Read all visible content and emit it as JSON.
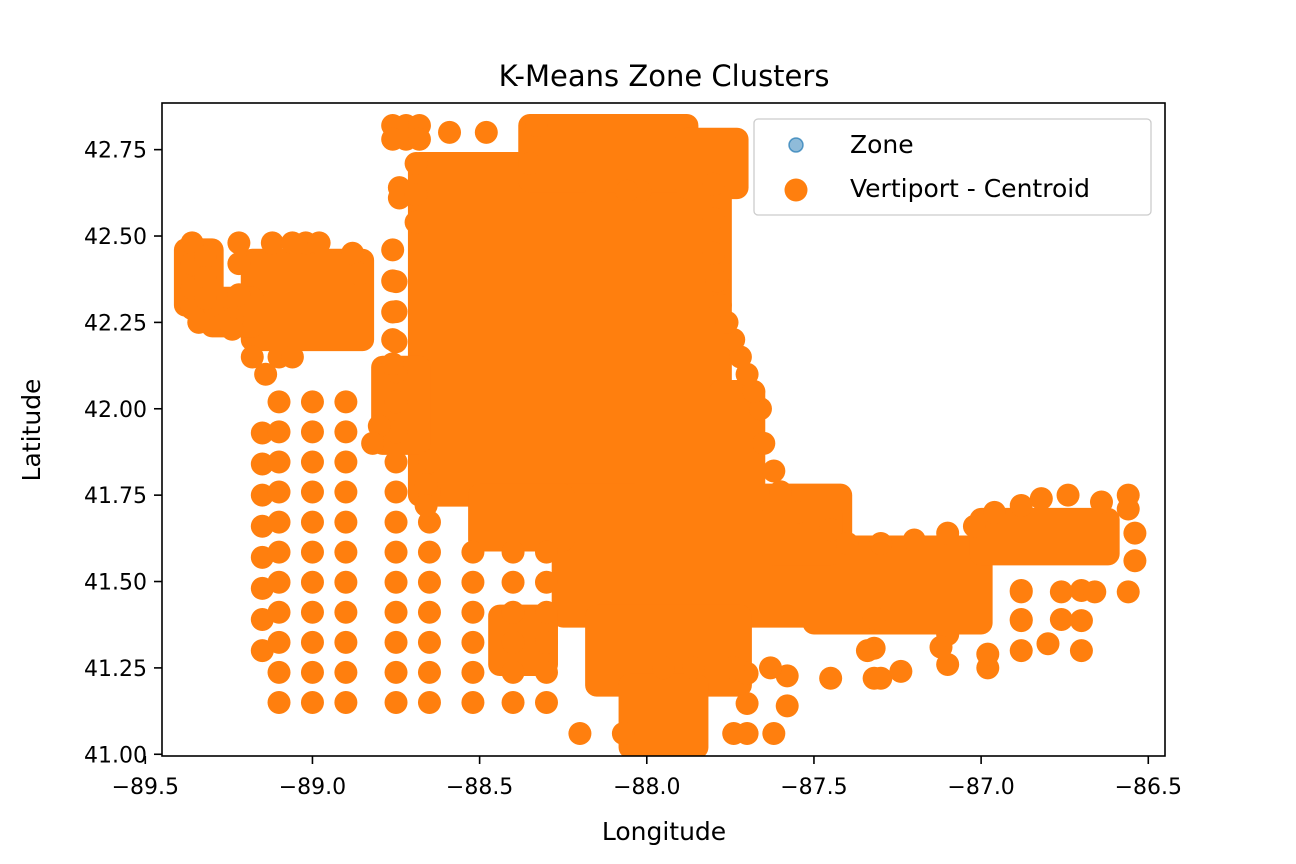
{
  "chart_data": {
    "type": "scatter",
    "title": "K-Means Zone Clusters",
    "xlabel": "Longitude",
    "ylabel": "Latitude",
    "xlim": [
      -89.45,
      -86.45
    ],
    "ylim": [
      40.995,
      42.885
    ],
    "xticks": [
      {
        "value": -89.5,
        "label": "−89.5"
      },
      {
        "value": -89.0,
        "label": "−89.0"
      },
      {
        "value": -88.5,
        "label": "−88.5"
      },
      {
        "value": -88.0,
        "label": "−88.0"
      },
      {
        "value": -87.5,
        "label": "−87.5"
      },
      {
        "value": -87.0,
        "label": "−87.0"
      },
      {
        "value": -86.5,
        "label": "−86.5"
      }
    ],
    "yticks": [
      {
        "value": 41.0,
        "label": "41.00"
      },
      {
        "value": 41.25,
        "label": "41.25"
      },
      {
        "value": 41.5,
        "label": "41.50"
      },
      {
        "value": 41.75,
        "label": "41.75"
      },
      {
        "value": 42.0,
        "label": "42.00"
      },
      {
        "value": 42.25,
        "label": "42.25"
      },
      {
        "value": 42.5,
        "label": "42.50"
      },
      {
        "value": 42.75,
        "label": "42.75"
      }
    ],
    "grid": false,
    "legend_position": "top-right",
    "series": [
      {
        "name": "Zone",
        "color": "#1f77b4",
        "marker_style": "small-translucent",
        "points": []
      },
      {
        "name": "Vertiport - Centroid",
        "color": "#ff7f0e",
        "marker_style": "large",
        "rect_fills": [
          {
            "x0": -88.68,
            "x1": -87.78,
            "y0": 41.75,
            "y1": 42.71
          },
          {
            "x0": -88.35,
            "x1": -87.88,
            "y0": 42.66,
            "y1": 42.82
          },
          {
            "x0": -88.25,
            "x1": -87.42,
            "y0": 41.4,
            "y1": 41.75
          },
          {
            "x0": -88.15,
            "x1": -87.72,
            "y0": 41.2,
            "y1": 41.4
          },
          {
            "x0": -87.5,
            "x1": -87.0,
            "y0": 41.38,
            "y1": 41.6
          },
          {
            "x0": -87.0,
            "x1": -86.62,
            "y0": 41.58,
            "y1": 41.68
          },
          {
            "x0": -88.5,
            "x1": -88.25,
            "y0": 41.62,
            "y1": 41.75
          },
          {
            "x0": -89.18,
            "x1": -88.85,
            "y0": 42.2,
            "y1": 42.43
          },
          {
            "x0": -89.3,
            "x1": -89.18,
            "y0": 42.24,
            "y1": 42.32
          },
          {
            "x0": -89.38,
            "x1": -89.3,
            "y0": 42.3,
            "y1": 42.46
          },
          {
            "x0": -88.79,
            "x1": -88.68,
            "y0": 41.9,
            "y1": 42.12
          },
          {
            "x0": -87.78,
            "x1": -87.68,
            "y0": 41.75,
            "y1": 42.05
          },
          {
            "x0": -88.05,
            "x1": -87.85,
            "y0": 41.02,
            "y1": 41.2
          },
          {
            "x0": -87.62,
            "x1": -87.45,
            "y0": 41.58,
            "y1": 41.7
          },
          {
            "x0": -88.44,
            "x1": -88.3,
            "y0": 41.26,
            "y1": 41.4
          },
          {
            "x0": -87.88,
            "x1": -87.73,
            "y0": 42.64,
            "y1": 42.78
          }
        ],
        "scatter_columns": [
          {
            "x": -89.15,
            "y_start": 41.3,
            "y_end": 41.95,
            "step": 0.09
          },
          {
            "x": -89.1,
            "y_start": 41.15,
            "y_end": 42.02,
            "step": 0.087
          },
          {
            "x": -89.0,
            "y_start": 41.15,
            "y_end": 42.1,
            "step": 0.087
          },
          {
            "x": -88.9,
            "y_start": 41.15,
            "y_end": 42.1,
            "step": 0.087
          },
          {
            "x": -88.75,
            "y_start": 41.15,
            "y_end": 42.37,
            "step": 0.087
          },
          {
            "x": -88.65,
            "y_start": 41.15,
            "y_end": 41.85,
            "step": 0.087
          },
          {
            "x": -88.52,
            "y_start": 41.15,
            "y_end": 41.6,
            "step": 0.087
          },
          {
            "x": -88.4,
            "y_start": 41.15,
            "y_end": 41.6,
            "step": 0.087
          },
          {
            "x": -88.3,
            "y_start": 41.15,
            "y_end": 41.6,
            "step": 0.087
          },
          {
            "x": -87.7,
            "y_start": 41.06,
            "y_end": 41.3,
            "step": 0.087
          },
          {
            "x": -87.58,
            "y_start": 41.14,
            "y_end": 41.3,
            "step": 0.087
          },
          {
            "x": -87.32,
            "y_start": 41.22,
            "y_end": 41.4,
            "step": 0.087
          },
          {
            "x": -87.1,
            "y_start": 41.26,
            "y_end": 41.4,
            "step": 0.087
          },
          {
            "x": -86.88,
            "y_start": 41.3,
            "y_end": 41.5,
            "step": 0.087
          },
          {
            "x": -86.7,
            "y_start": 41.3,
            "y_end": 41.5,
            "step": 0.087
          }
        ],
        "points": [
          [
            -89.36,
            42.48
          ],
          [
            -89.36,
            42.42
          ],
          [
            -89.36,
            42.35
          ],
          [
            -89.36,
            42.29
          ],
          [
            -89.34,
            42.25
          ],
          [
            -89.32,
            42.44
          ],
          [
            -89.32,
            42.38
          ],
          [
            -89.32,
            42.32
          ],
          [
            -89.22,
            42.48
          ],
          [
            -89.22,
            42.42
          ],
          [
            -89.22,
            42.33
          ],
          [
            -89.24,
            42.26
          ],
          [
            -89.24,
            42.23
          ],
          [
            -89.12,
            42.48
          ],
          [
            -89.06,
            42.48
          ],
          [
            -89.02,
            42.48
          ],
          [
            -88.98,
            42.48
          ],
          [
            -89.1,
            42.15
          ],
          [
            -89.06,
            42.15
          ],
          [
            -89.18,
            42.15
          ],
          [
            -89.14,
            42.1
          ],
          [
            -88.88,
            42.45
          ],
          [
            -88.86,
            42.39
          ],
          [
            -88.72,
            42.82
          ],
          [
            -88.72,
            42.78
          ],
          [
            -88.68,
            42.82
          ],
          [
            -88.68,
            42.78
          ],
          [
            -88.76,
            42.82
          ],
          [
            -88.76,
            42.78
          ],
          [
            -88.69,
            42.71
          ],
          [
            -88.59,
            42.8
          ],
          [
            -88.48,
            42.8
          ],
          [
            -88.33,
            42.82
          ],
          [
            -88.74,
            42.64
          ],
          [
            -88.74,
            42.61
          ],
          [
            -88.69,
            42.62
          ],
          [
            -88.69,
            42.54
          ],
          [
            -88.35,
            42.71
          ],
          [
            -88.15,
            42.63
          ],
          [
            -88.02,
            42.63
          ],
          [
            -88.06,
            42.63
          ],
          [
            -88.76,
            42.46
          ],
          [
            -88.76,
            42.37
          ],
          [
            -88.76,
            42.28
          ],
          [
            -88.76,
            42.2
          ],
          [
            -88.76,
            42.13
          ],
          [
            -88.8,
            41.95
          ],
          [
            -88.82,
            41.9
          ],
          [
            -88.64,
            41.85
          ],
          [
            -88.66,
            41.78
          ],
          [
            -88.66,
            41.72
          ],
          [
            -88.2,
            41.06
          ],
          [
            -88.07,
            41.06
          ],
          [
            -87.74,
            41.06
          ],
          [
            -87.62,
            41.06
          ],
          [
            -87.95,
            41.25
          ],
          [
            -87.86,
            41.25
          ],
          [
            -87.74,
            41.25
          ],
          [
            -87.63,
            41.25
          ],
          [
            -87.45,
            41.22
          ],
          [
            -87.3,
            41.22
          ],
          [
            -87.24,
            41.24
          ],
          [
            -87.34,
            41.3
          ],
          [
            -87.12,
            41.31
          ],
          [
            -86.98,
            41.25
          ],
          [
            -86.98,
            41.29
          ],
          [
            -86.88,
            41.39
          ],
          [
            -86.88,
            41.47
          ],
          [
            -86.8,
            41.32
          ],
          [
            -86.76,
            41.39
          ],
          [
            -86.76,
            41.47
          ],
          [
            -86.66,
            41.47
          ],
          [
            -86.56,
            41.47
          ],
          [
            -86.54,
            41.56
          ],
          [
            -86.54,
            41.64
          ],
          [
            -86.56,
            41.71
          ],
          [
            -86.56,
            41.75
          ],
          [
            -86.64,
            41.73
          ],
          [
            -86.74,
            41.75
          ],
          [
            -86.82,
            41.74
          ],
          [
            -86.88,
            41.72
          ],
          [
            -86.96,
            41.7
          ],
          [
            -87.02,
            41.66
          ],
          [
            -87.1,
            41.64
          ],
          [
            -87.2,
            41.62
          ],
          [
            -87.3,
            41.61
          ],
          [
            -87.4,
            41.61
          ],
          [
            -87.45,
            41.65
          ],
          [
            -87.55,
            41.7
          ],
          [
            -87.6,
            41.76
          ],
          [
            -87.62,
            41.82
          ],
          [
            -87.65,
            41.9
          ],
          [
            -87.66,
            42.0
          ],
          [
            -87.68,
            42.05
          ],
          [
            -87.7,
            42.1
          ],
          [
            -87.72,
            42.15
          ],
          [
            -87.74,
            42.2
          ],
          [
            -87.76,
            42.25
          ],
          [
            -87.78,
            42.3
          ],
          [
            -87.79,
            42.37
          ],
          [
            -87.8,
            42.45
          ],
          [
            -87.8,
            42.55
          ],
          [
            -87.8,
            42.65
          ]
        ]
      }
    ]
  }
}
